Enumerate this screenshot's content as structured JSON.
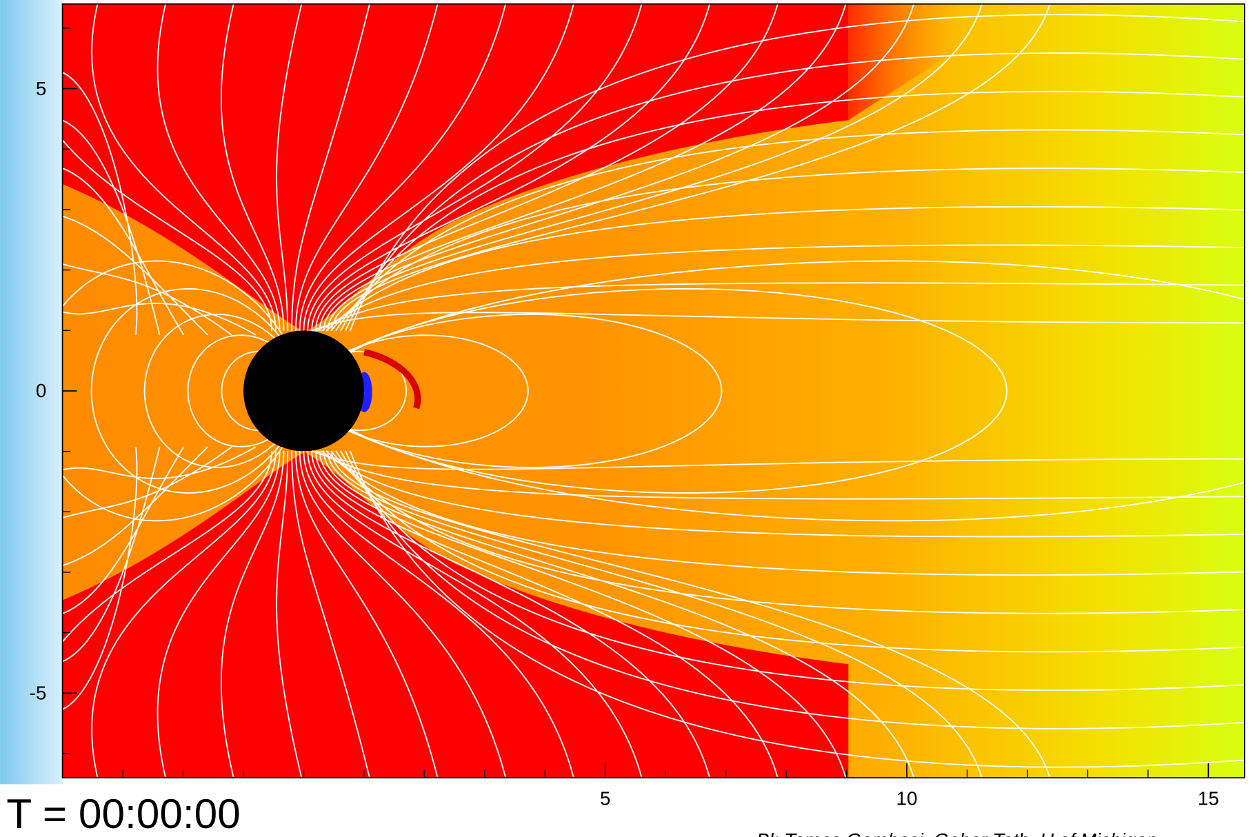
{
  "chart_data": {
    "type": "field",
    "xlim": [
      -4,
      15.6
    ],
    "ylim": [
      -6.4,
      6.4
    ],
    "xticks": [
      5,
      10,
      15
    ],
    "yticks": [
      5,
      0,
      -5
    ],
    "xminorticks": [
      -3,
      -2,
      -1,
      0,
      1,
      2,
      3,
      4,
      6,
      7,
      8,
      9,
      11,
      12,
      13,
      14
    ],
    "yminorticks": [
      6,
      4,
      3,
      2,
      1,
      -1,
      -2,
      -3,
      -4,
      -6
    ],
    "planet": {
      "x": 0,
      "y": 0,
      "radius": 1
    },
    "time_label": "T = 00:00:00",
    "credit": "Bl: Tamas Gombosi, Gabor Toth, U of Michigan"
  }
}
